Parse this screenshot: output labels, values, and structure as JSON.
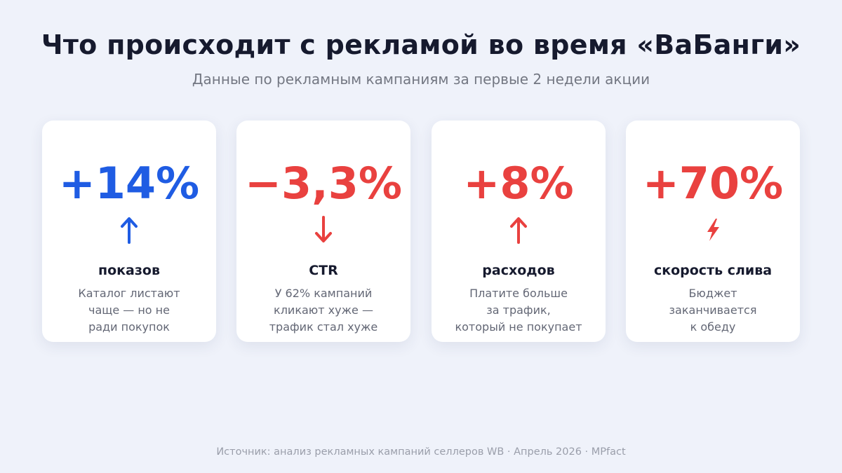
{
  "header": {
    "title": "Что происходит с рекламой во время «ВаБанги»",
    "subtitle": "Данные по рекламным кампаниям за первые 2 недели акции"
  },
  "colors": {
    "blue": "#1f5ce3",
    "red": "#e9413f",
    "title": "#161a2e",
    "muted": "#737782",
    "background": "#eff2fa"
  },
  "cards": [
    {
      "value": "+14%",
      "icon": "arrow-up-icon",
      "color": "#1f5ce3",
      "label": "показов",
      "desc": [
        "Каталог листают",
        "чаще — но не",
        "ради покупок"
      ]
    },
    {
      "value": "−3,3%",
      "icon": "arrow-down-icon",
      "color": "#e9413f",
      "label": "CTR",
      "desc": [
        "У 62% кампаний",
        "кликают хуже —",
        "трафик стал хуже"
      ]
    },
    {
      "value": "+8%",
      "icon": "arrow-up-icon",
      "color": "#e9413f",
      "label": "расходов",
      "desc": [
        "Платите больше",
        "за трафик,",
        "который не покупает"
      ]
    },
    {
      "value": "+70%",
      "icon": "lightning-icon",
      "color": "#e9413f",
      "label": "скорость слива",
      "desc": [
        "Бюджет",
        "заканчивается",
        "к обеду"
      ]
    }
  ],
  "footer": {
    "source": "Источник: анализ рекламных кампаний селлеров WB · Апрель 2026 · MPfact"
  }
}
